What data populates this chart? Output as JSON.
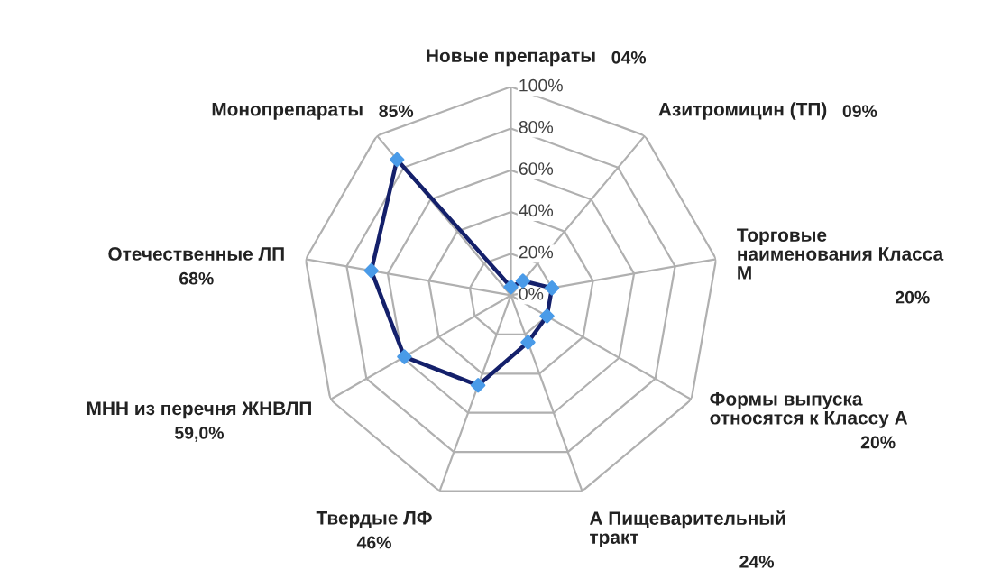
{
  "chart_data": {
    "type": "radar",
    "categories": [
      "Новые препараты",
      "Азитромицин (ТП)",
      "Торговые наименования Класса М",
      "Формы выпуска относятся к Классу А",
      "А Пищеварительный тракт",
      "Твердые ЛФ",
      "МНН из перечня ЖНВЛП",
      "Отечественные ЛП",
      "Монопрепараты"
    ],
    "series": [
      {
        "color": "#14206b",
        "colors": [
          "#4a9be8",
          "#4a9be8",
          "#4a9be8",
          "#4a9be8",
          "#4a9be8",
          "#4a9be8",
          "#4a9be8",
          "#4a9be8",
          "#4a9be8"
        ],
        "values": [
          4,
          9,
          20,
          20,
          24,
          46,
          59,
          68,
          85
        ]
      }
    ],
    "annotations": [
      "04%",
      "09%",
      "20%",
      "20%",
      "24%",
      "46%",
      "59,0%",
      "68%",
      "85%"
    ],
    "marker": "diamond",
    "line_style": "solid",
    "ylim": [
      0,
      100
    ],
    "yticks": [
      {
        "value": 0,
        "label": "0%"
      },
      {
        "value": 20,
        "label": "20%"
      },
      {
        "value": 40,
        "label": "40%"
      },
      {
        "value": 60,
        "label": "60%"
      },
      {
        "value": 80,
        "label": "80%"
      },
      {
        "value": 100,
        "label": "100%"
      }
    ],
    "grid": true,
    "legend": false
  }
}
